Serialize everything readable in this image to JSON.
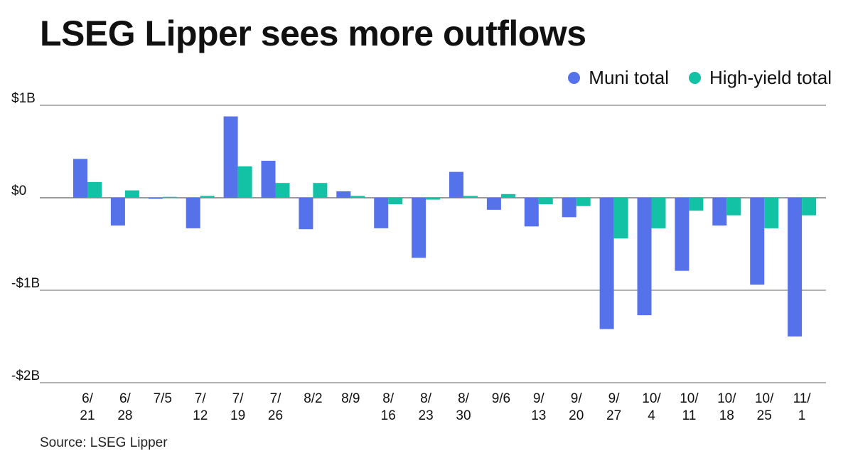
{
  "title": "LSEG Lipper sees more outflows",
  "source": "Source: LSEG Lipper",
  "colors": {
    "muni": "#5672ea",
    "high_yield": "#13c2a4",
    "grid": "#555555",
    "text": "#111111"
  },
  "chart_data": {
    "type": "bar",
    "title": "LSEG Lipper sees more outflows",
    "xlabel": "",
    "ylabel": "",
    "ylim": [
      -2,
      1
    ],
    "y_ticks": [
      {
        "value": 1,
        "label": "$1B"
      },
      {
        "value": 0,
        "label": "$0"
      },
      {
        "value": -1,
        "label": "-$1B"
      },
      {
        "value": -2,
        "label": "-$2B"
      }
    ],
    "grid": true,
    "legend_position": "top-right",
    "categories": [
      [
        "6/",
        "21"
      ],
      [
        "6/",
        "28"
      ],
      [
        "7/5"
      ],
      [
        "7/",
        "12"
      ],
      [
        "7/",
        "19"
      ],
      [
        "7/",
        "26"
      ],
      [
        "8/2"
      ],
      [
        "8/9"
      ],
      [
        "8/",
        "16"
      ],
      [
        "8/",
        "23"
      ],
      [
        "8/",
        "30"
      ],
      [
        "9/6"
      ],
      [
        "9/",
        "13"
      ],
      [
        "9/",
        "20"
      ],
      [
        "9/",
        "27"
      ],
      [
        "10/",
        "4"
      ],
      [
        "10/",
        "11"
      ],
      [
        "10/",
        "18"
      ],
      [
        "10/",
        "25"
      ],
      [
        "11/",
        "1"
      ]
    ],
    "series": [
      {
        "name": "Muni total",
        "values": [
          0.42,
          -0.3,
          0.0,
          -0.33,
          0.88,
          0.4,
          -0.34,
          0.07,
          -0.33,
          -0.65,
          0.28,
          -0.13,
          -0.31,
          -0.21,
          -1.42,
          -1.27,
          -0.79,
          -0.3,
          -0.94,
          -1.5
        ]
      },
      {
        "name": "High-yield total",
        "values": [
          0.17,
          0.08,
          0.01,
          0.02,
          0.34,
          0.16,
          0.16,
          0.02,
          -0.07,
          -0.02,
          0.02,
          0.04,
          -0.07,
          -0.09,
          -0.44,
          -0.33,
          -0.14,
          -0.19,
          -0.33,
          -0.19
        ]
      }
    ]
  }
}
